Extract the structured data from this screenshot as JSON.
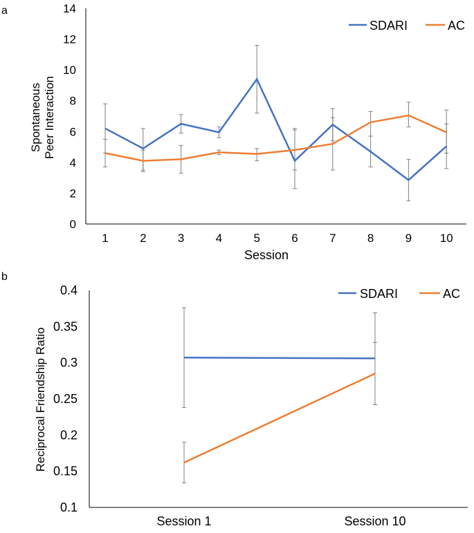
{
  "chart_data": [
    {
      "panel_label": "a",
      "type": "line",
      "title": "",
      "xlabel": "Session",
      "ylabel": [
        "Spontaneous",
        "Peer Interaction"
      ],
      "categories": [
        "1",
        "2",
        "3",
        "4",
        "5",
        "6",
        "7",
        "8",
        "9",
        "10"
      ],
      "ylim": [
        0,
        14
      ],
      "yticks": [
        "0",
        "2",
        "4",
        "6",
        "8",
        "10",
        "12",
        "14"
      ],
      "grid": false,
      "legend_position": "top-right",
      "series": [
        {
          "name": "SDARI",
          "color": "#4472C4",
          "values": [
            6.2,
            4.9,
            6.5,
            5.95,
            9.4,
            4.1,
            6.45,
            4.7,
            2.85,
            5.05
          ],
          "err_low": [
            4.6,
            3.5,
            5.9,
            5.6,
            7.2,
            2.3,
            5.4,
            3.7,
            1.5,
            3.6
          ],
          "err_high": [
            7.8,
            6.2,
            7.1,
            6.3,
            11.6,
            6.1,
            7.5,
            5.7,
            4.2,
            6.5
          ]
        },
        {
          "name": "AC",
          "color": "#ED7D31",
          "values": [
            4.6,
            4.1,
            4.2,
            4.65,
            4.55,
            4.8,
            5.2,
            6.6,
            7.05,
            5.95
          ],
          "err_low": [
            3.7,
            3.4,
            3.3,
            4.5,
            4.1,
            3.5,
            3.5,
            5.7,
            6.3,
            4.6
          ],
          "err_high": [
            5.5,
            4.8,
            5.1,
            4.8,
            4.9,
            6.2,
            6.9,
            7.3,
            7.9,
            7.4
          ]
        }
      ]
    },
    {
      "panel_label": "b",
      "type": "line",
      "title": "",
      "xlabel": "",
      "ylabel": [
        "Reciprocal Friendship Ratio"
      ],
      "categories": [
        "Session 1",
        "Session 10"
      ],
      "ylim": [
        0.1,
        0.4
      ],
      "yticks": [
        "0.1",
        "0.15",
        "0.2",
        "0.25",
        "0.3",
        "0.35",
        "0.4"
      ],
      "grid": false,
      "legend_position": "top-right",
      "series": [
        {
          "name": "SDARI",
          "color": "#4472C4",
          "values": [
            0.307,
            0.306
          ],
          "err_low": [
            0.238,
            0.242
          ],
          "err_high": [
            0.376,
            0.369
          ]
        },
        {
          "name": "AC",
          "color": "#ED7D31",
          "values": [
            0.162,
            0.285
          ],
          "err_low": [
            0.134,
            0.242
          ],
          "err_high": [
            0.19,
            0.328
          ]
        }
      ]
    }
  ]
}
